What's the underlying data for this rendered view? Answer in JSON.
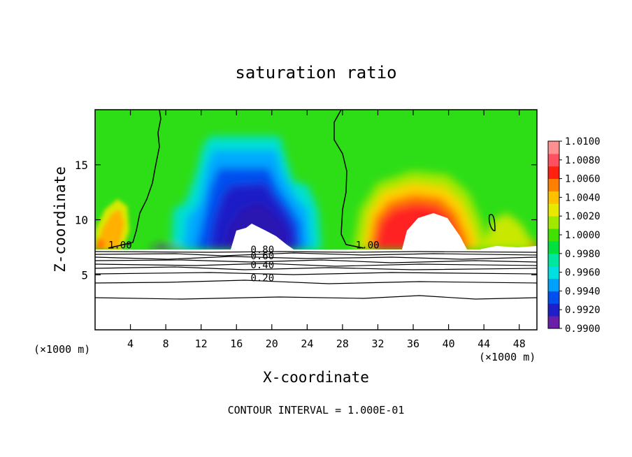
{
  "chart_data": {
    "type": "heatmap",
    "title": "saturation ratio",
    "xlabel": "X-coordinate",
    "ylabel": "Z-coordinate",
    "x_unit_label": "(×1000 m)",
    "y_unit_label": "(×1000 m)",
    "footer": "CONTOUR INTERVAL = 1.000E-01",
    "xlim": [
      0,
      50
    ],
    "ylim": [
      0,
      20
    ],
    "x_ticks": [
      4,
      8,
      12,
      16,
      20,
      24,
      28,
      32,
      36,
      40,
      44,
      48
    ],
    "y_ticks": [
      5,
      10,
      15
    ],
    "colorbar": {
      "min": 0.99,
      "max": 1.01,
      "labels": [
        "1.0100",
        "1.0080",
        "1.0060",
        "1.0040",
        "1.0020",
        "1.0000",
        "0.9980",
        "0.9960",
        "0.9940",
        "0.9920",
        "0.9900"
      ],
      "colors": [
        "#6a1fa8",
        "#1f1fc8",
        "#0050f0",
        "#00a0ff",
        "#00e0e0",
        "#00e8a0",
        "#00e040",
        "#40e000",
        "#a0e800",
        "#e8e800",
        "#ffc000",
        "#ff8000",
        "#ff2010",
        "#ff5060",
        "#ff9090"
      ]
    },
    "contours": [
      {
        "label": "1.00",
        "x": 1.5,
        "y": 7.4
      },
      {
        "label": "1.00",
        "x": 29.5,
        "y": 7.4
      },
      {
        "label": "0.80",
        "x": 17.6,
        "y": 7.0
      },
      {
        "label": "0.60",
        "x": 17.6,
        "y": 6.4
      },
      {
        "label": "0.40",
        "x": 17.6,
        "y": 5.6
      },
      {
        "label": "0.20",
        "x": 17.6,
        "y": 4.4
      }
    ]
  }
}
